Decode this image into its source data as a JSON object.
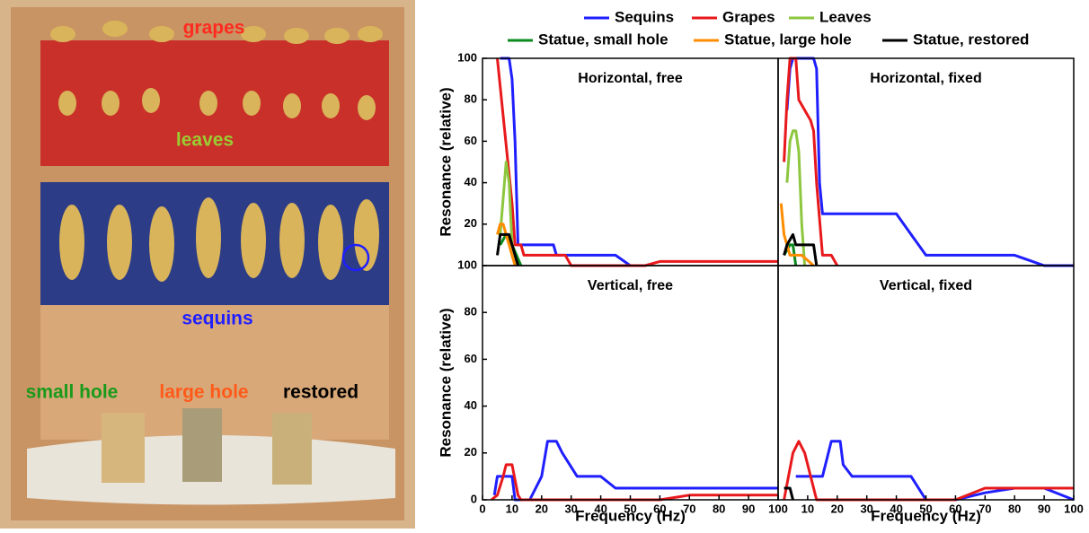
{
  "photo": {
    "labels": [
      {
        "text": "grapes",
        "color": "#ff2a1f"
      },
      {
        "text": "leaves",
        "color": "#9acd32"
      },
      {
        "text": "sequins",
        "color": "#1f1fff"
      },
      {
        "text": "small hole",
        "color": "#1a9a1a"
      },
      {
        "text": "large hole",
        "color": "#ff5a1a"
      },
      {
        "text": "restored",
        "color": "#000000"
      }
    ]
  },
  "chart_data": [
    {
      "type": "line",
      "title": "Horizontal, free",
      "y_label": "Resonance (relative)",
      "xlim": [
        0,
        100
      ],
      "ylim": [
        0,
        100
      ],
      "yticks": [
        20,
        40,
        60,
        80,
        100
      ],
      "series": [
        {
          "name": "Sequins",
          "color": "#1f1fff",
          "x": [
            6,
            9,
            10,
            11,
            12,
            24,
            25,
            45,
            50
          ],
          "values": [
            100,
            100,
            90,
            60,
            10,
            10,
            5,
            5,
            0
          ]
        },
        {
          "name": "Grapes",
          "color": "#e8191c",
          "x": [
            5,
            10,
            11,
            13,
            14,
            28,
            30,
            55,
            60,
            100
          ],
          "values": [
            100,
            30,
            10,
            10,
            5,
            5,
            0,
            0,
            2,
            2
          ]
        },
        {
          "name": "Leaves",
          "color": "#8dc63f",
          "x": [
            6,
            8,
            9,
            10,
            12
          ],
          "values": [
            15,
            50,
            40,
            10,
            0
          ]
        },
        {
          "name": "Statue, small hole",
          "color": "#0d8a1d",
          "x": [
            6,
            8,
            10,
            13
          ],
          "values": [
            10,
            15,
            10,
            0
          ]
        },
        {
          "name": "Statue, large hole",
          "color": "#ff8c00",
          "x": [
            5,
            6,
            7,
            9,
            11
          ],
          "values": [
            15,
            20,
            20,
            10,
            0
          ]
        },
        {
          "name": "Statue, restored",
          "color": "#000000",
          "x": [
            5,
            6,
            9,
            11,
            12
          ],
          "values": [
            5,
            15,
            15,
            5,
            0
          ]
        }
      ]
    },
    {
      "type": "line",
      "title": "Horizontal, fixed",
      "xlim": [
        0,
        100
      ],
      "ylim": [
        0,
        100
      ],
      "series": [
        {
          "name": "Sequins",
          "color": "#1f1fff",
          "x": [
            3,
            4,
            5,
            12,
            13,
            14,
            15,
            40,
            50,
            80,
            90,
            100
          ],
          "values": [
            75,
            95,
            100,
            100,
            95,
            40,
            25,
            25,
            5,
            5,
            0,
            0
          ]
        },
        {
          "name": "Grapes",
          "color": "#e8191c",
          "x": [
            2,
            3,
            4,
            6,
            7,
            11,
            12,
            13,
            15,
            18,
            20
          ],
          "values": [
            50,
            80,
            100,
            100,
            80,
            70,
            65,
            40,
            5,
            5,
            0
          ]
        },
        {
          "name": "Leaves",
          "color": "#8dc63f",
          "x": [
            3,
            4,
            5,
            6,
            7,
            8,
            9
          ],
          "values": [
            40,
            60,
            65,
            65,
            55,
            20,
            0
          ]
        },
        {
          "name": "Statue, small hole",
          "color": "#0d8a1d",
          "x": [
            2,
            4,
            5,
            6
          ],
          "values": [
            5,
            10,
            10,
            0
          ]
        },
        {
          "name": "Statue, large hole",
          "color": "#ff8c00",
          "x": [
            1,
            2,
            4,
            8,
            12
          ],
          "values": [
            30,
            15,
            5,
            5,
            0
          ]
        },
        {
          "name": "Statue, restored",
          "color": "#000000",
          "x": [
            2,
            3,
            5,
            6,
            12,
            13
          ],
          "values": [
            5,
            10,
            15,
            10,
            10,
            0
          ]
        }
      ]
    },
    {
      "type": "line",
      "title": "Vertical, free",
      "y_label": "Resonance (relative)",
      "x_label": "Frequency (Hz)",
      "xlim": [
        0,
        100
      ],
      "ylim": [
        0,
        100
      ],
      "yticks": [
        0,
        20,
        40,
        60,
        80,
        100
      ],
      "xticks": [
        0,
        10,
        20,
        30,
        40,
        50,
        60,
        70,
        80,
        90,
        100
      ],
      "series": [
        {
          "name": "Sequins",
          "color": "#1f1fff",
          "x": [
            4,
            5,
            10,
            11,
            16,
            20,
            22,
            25,
            27,
            32,
            40,
            45,
            100
          ],
          "values": [
            2,
            10,
            10,
            0,
            0,
            10,
            25,
            25,
            20,
            10,
            10,
            5,
            5
          ]
        },
        {
          "name": "Grapes",
          "color": "#e8191c",
          "x": [
            3,
            5,
            7,
            8,
            10,
            12,
            13,
            60,
            70,
            100
          ],
          "values": [
            0,
            2,
            10,
            15,
            15,
            2,
            0,
            0,
            2,
            2
          ]
        }
      ]
    },
    {
      "type": "line",
      "title": "Vertical, fixed",
      "x_label": "Frequency (Hz)",
      "xlim": [
        0,
        100
      ],
      "ylim": [
        0,
        100
      ],
      "xticks": [
        10,
        20,
        30,
        40,
        50,
        60,
        70,
        80,
        90,
        100
      ],
      "series": [
        {
          "name": "Sequins",
          "color": "#1f1fff",
          "x": [
            6,
            15,
            18,
            21,
            22,
            25,
            45,
            50,
            60,
            70,
            80,
            90,
            100
          ],
          "values": [
            10,
            10,
            25,
            25,
            15,
            10,
            10,
            0,
            0,
            3,
            5,
            5,
            0
          ]
        },
        {
          "name": "Grapes",
          "color": "#e8191c",
          "x": [
            2,
            5,
            7,
            9,
            13,
            60,
            70,
            100
          ],
          "values": [
            0,
            20,
            25,
            20,
            0,
            0,
            5,
            5
          ]
        },
        {
          "name": "Statue, restored",
          "color": "#000000",
          "x": [
            2,
            4,
            5
          ],
          "values": [
            5,
            5,
            0
          ]
        }
      ]
    }
  ]
}
